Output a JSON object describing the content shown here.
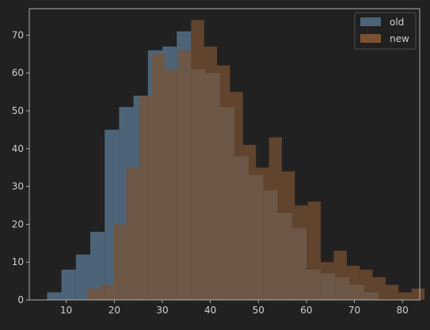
{
  "chart_data": {
    "type": "histogram",
    "title": "",
    "xlabel": "",
    "ylabel": "",
    "xlim": [
      2.3,
      83.6
    ],
    "ylim": [
      0,
      77
    ],
    "xticks": [
      10,
      20,
      30,
      40,
      50,
      60,
      70,
      80
    ],
    "yticks": [
      0,
      10,
      20,
      30,
      40,
      50,
      60,
      70
    ],
    "legend_position": "top-right",
    "series": [
      {
        "name": "old",
        "color": "#4d6478",
        "bin_start": 6.0,
        "bin_width": 3.0,
        "counts": [
          2,
          8,
          12,
          18,
          45,
          51,
          54,
          66,
          67,
          71,
          61,
          60,
          51,
          38,
          33,
          29,
          23,
          19,
          8,
          7,
          6,
          4,
          2
        ]
      },
      {
        "name": "new",
        "color": "#7a5233",
        "bin_start": 14.4,
        "bin_width": 2.7,
        "counts": [
          3,
          4,
          20,
          35,
          54,
          65,
          61,
          66,
          74,
          67,
          62,
          55,
          41,
          35,
          43,
          34,
          25,
          26,
          10,
          13,
          9,
          8,
          6,
          4,
          2,
          3
        ]
      }
    ]
  },
  "colors": {
    "background": "#212121",
    "spine": "#cfcfcf",
    "text": "#cfcfcf",
    "overlap": "#6b5a4f"
  }
}
